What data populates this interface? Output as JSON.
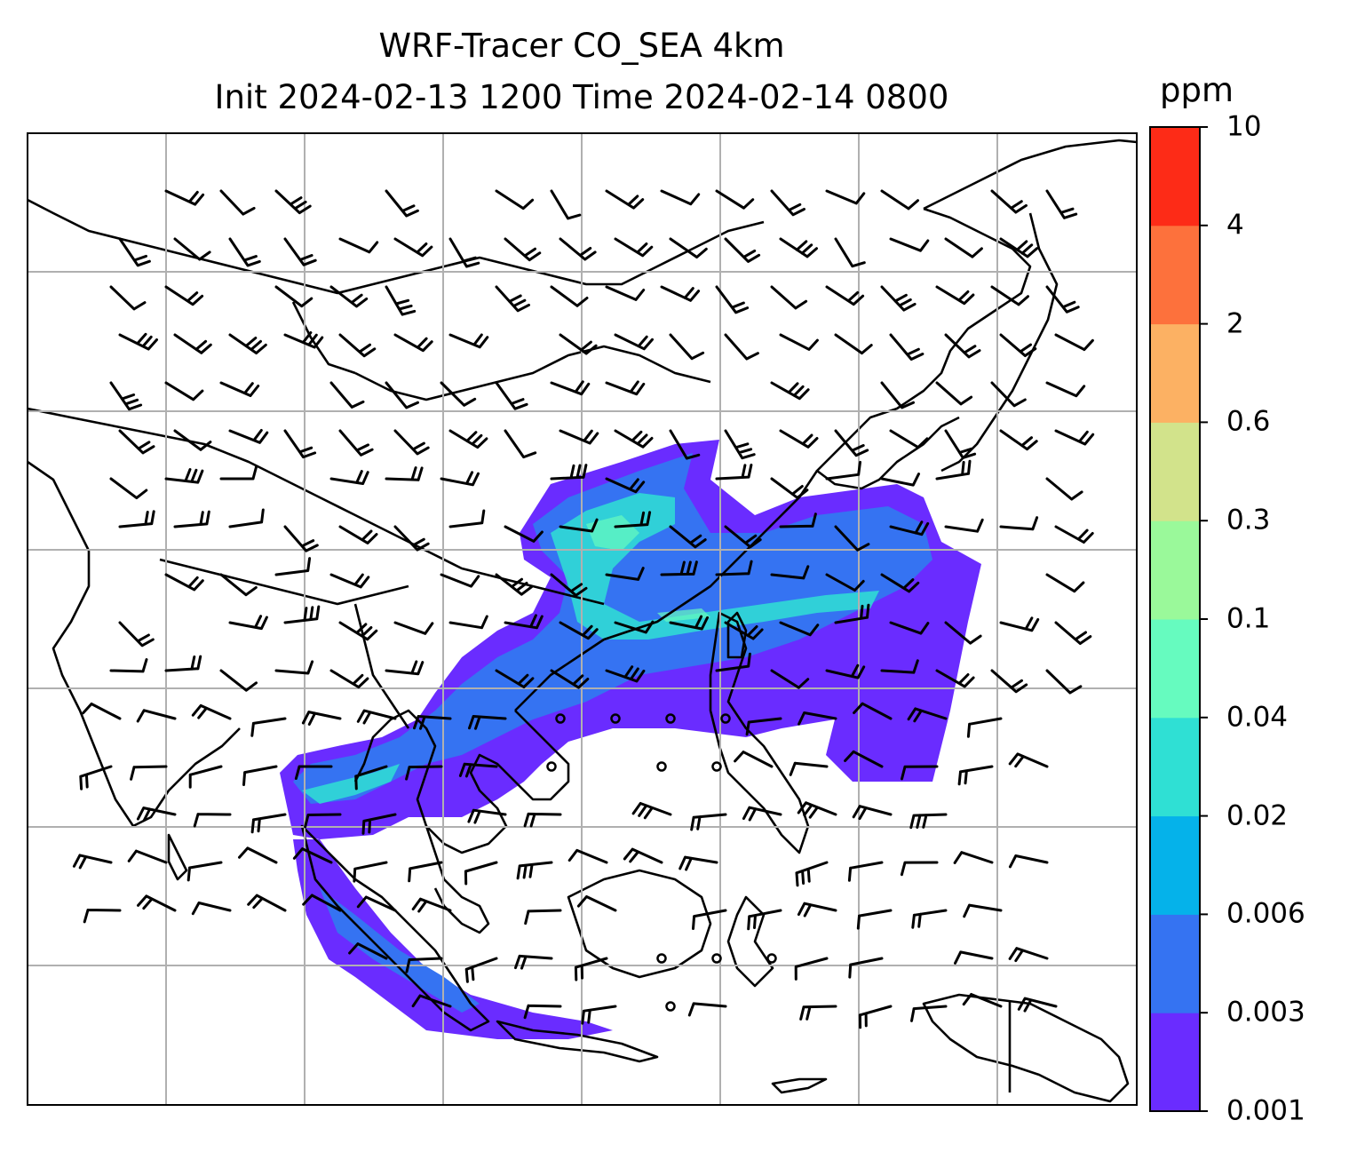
{
  "title": {
    "line1": "WRF-Tracer CO_SEA 4km",
    "line2": "Init 2024-02-13 1200 Time 2024-02-14 0800"
  },
  "colorbar": {
    "unit": "ppm",
    "levels": [
      "0.001",
      "0.003",
      "0.006",
      "0.02",
      "0.04",
      "0.1",
      "0.3",
      "0.6",
      "2",
      "4",
      "10"
    ],
    "colors": [
      "#6a2cff",
      "#3573f2",
      "#05b2ea",
      "#2fe0d4",
      "#66fbbf",
      "#9af99a",
      "#d2e38b",
      "#fcb163",
      "#fd713c",
      "#fd2b17"
    ]
  },
  "map": {
    "grid": "on",
    "field": "CO_SEA tracer concentration",
    "overlay": "wind barbs"
  }
}
